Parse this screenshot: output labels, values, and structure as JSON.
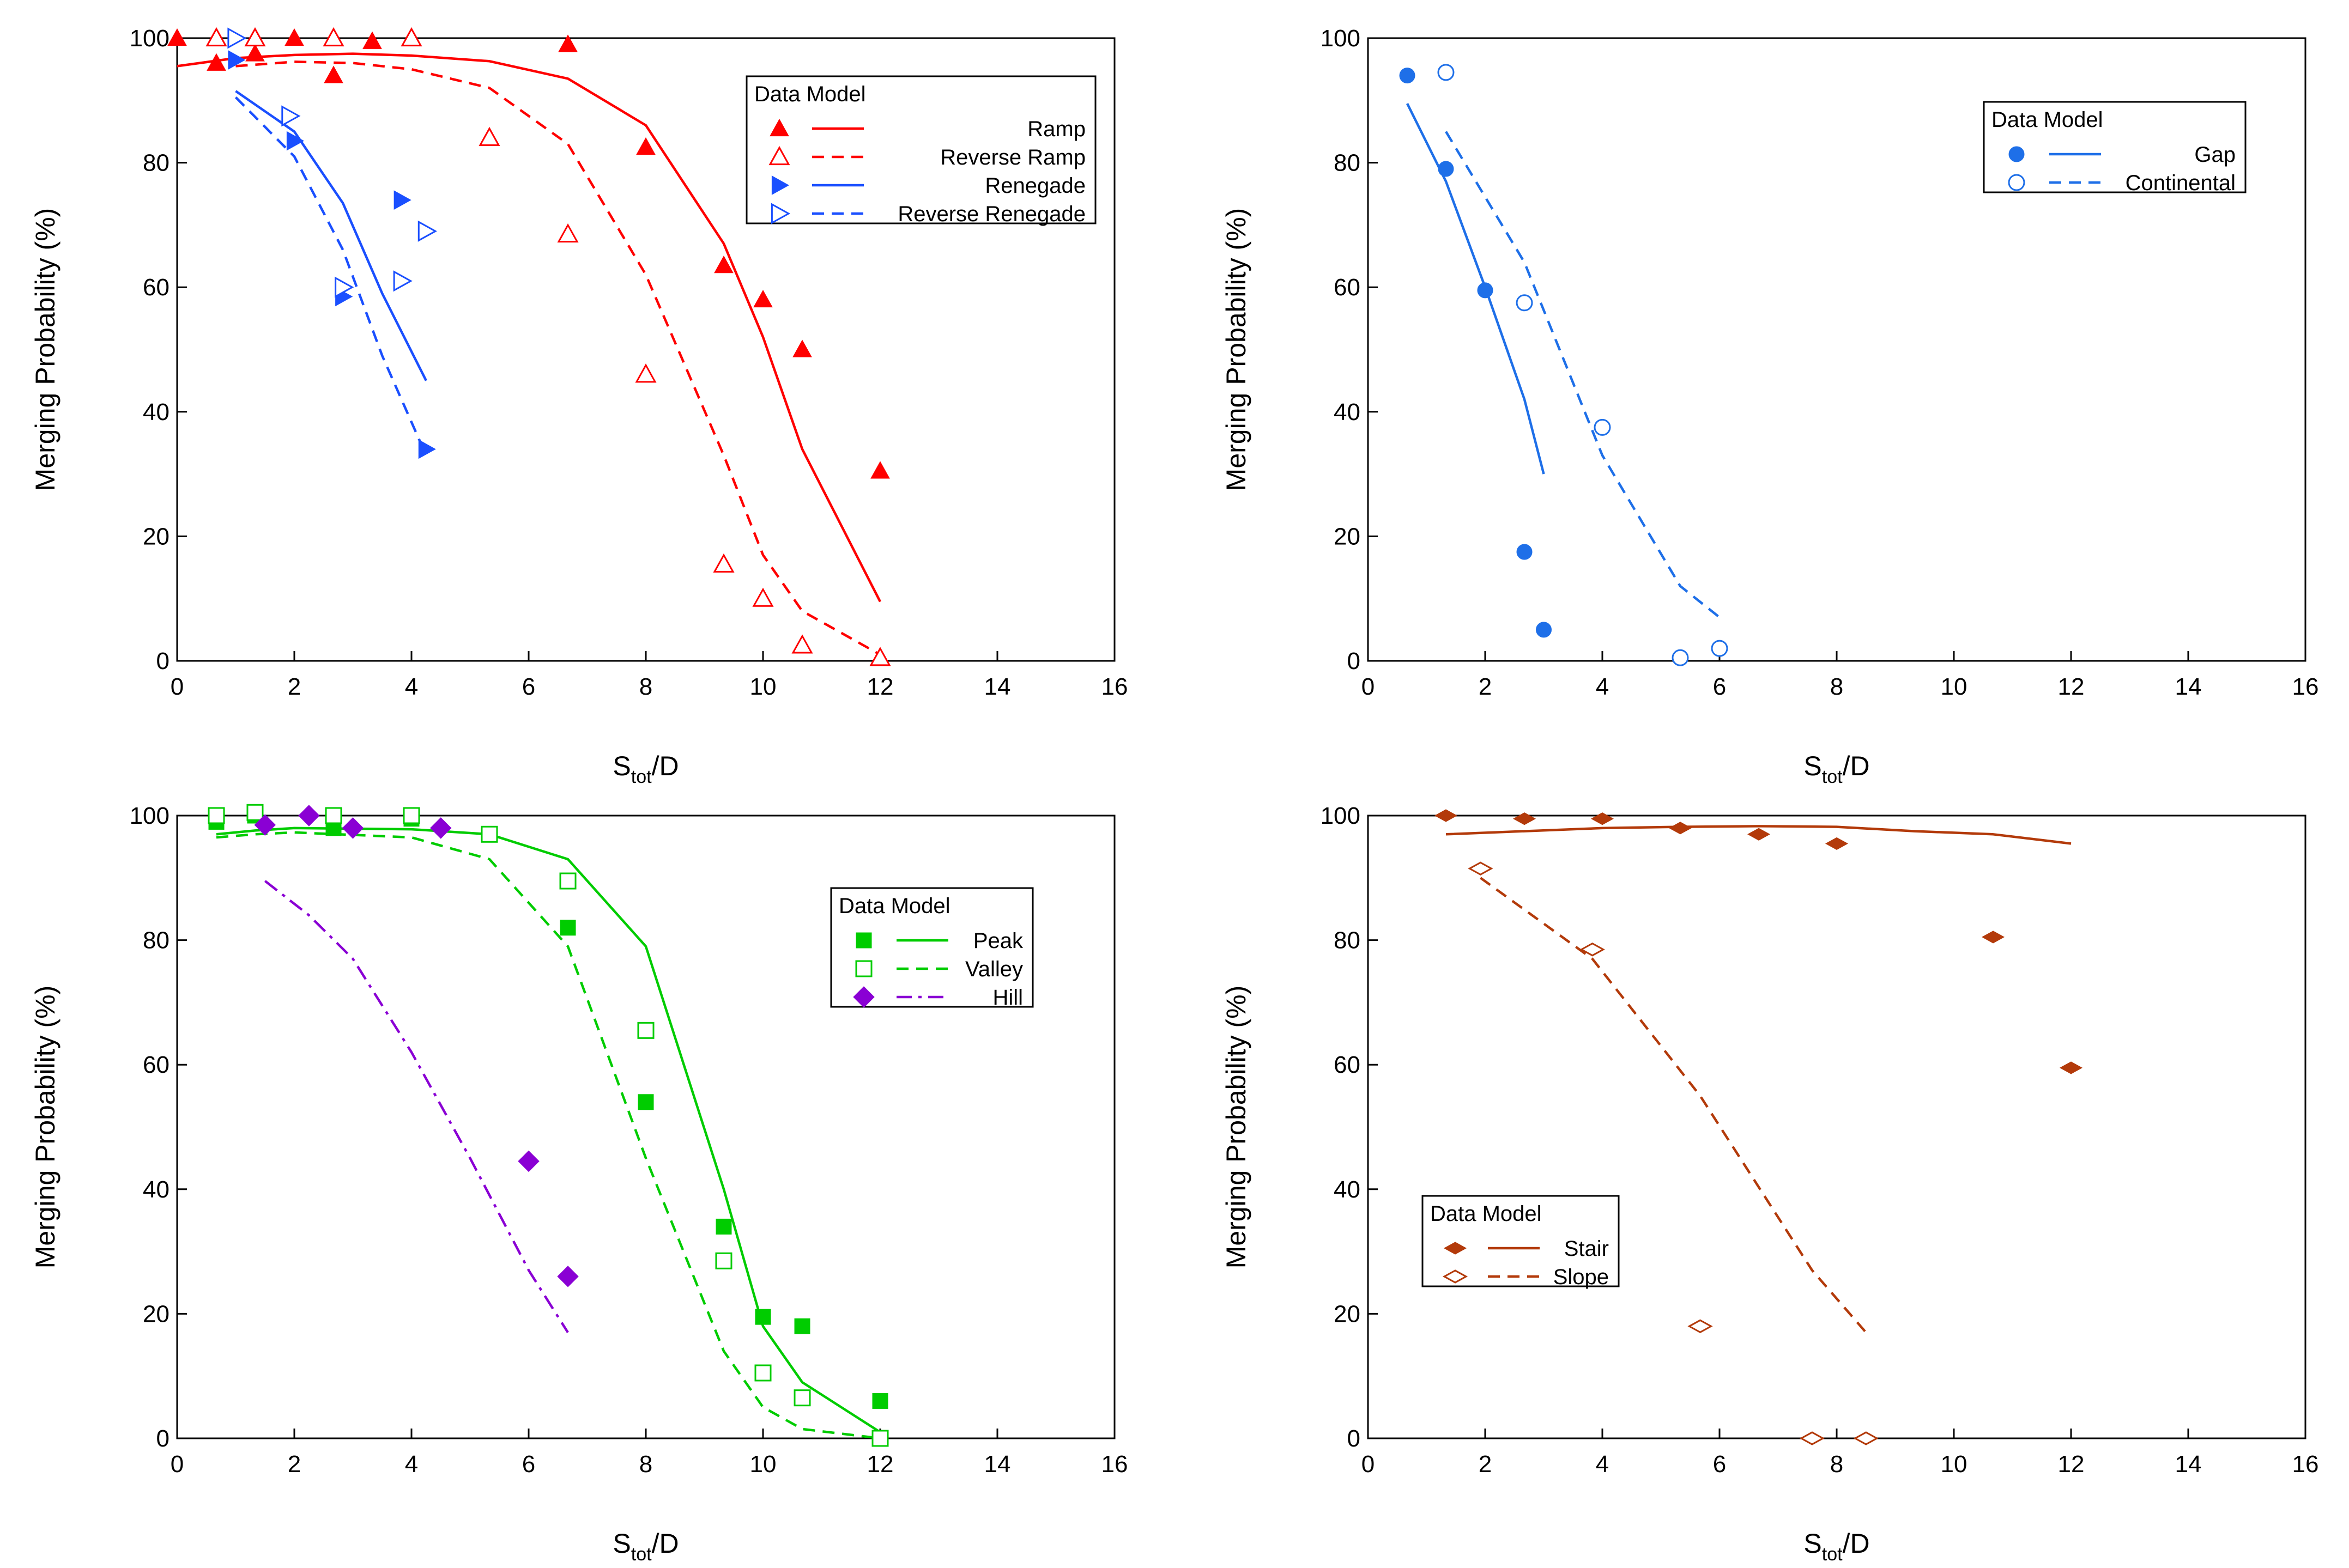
{
  "chart_data": [
    {
      "type": "scatter",
      "panel": "top-left",
      "xlabel_main": "S",
      "xlabel_sub": "tot",
      "xlabel_tail": "/D",
      "ylabel": "Merging Probability (%)",
      "xlim": [
        0,
        16
      ],
      "ylim": [
        0,
        100
      ],
      "xticks": [
        "0",
        "2",
        "4",
        "6",
        "8",
        "10",
        "12",
        "14",
        "16"
      ],
      "yticks": [
        "0",
        "20",
        "40",
        "60",
        "80",
        "100"
      ],
      "legend_title": "Data Model",
      "legend_position": "top-right",
      "series": [
        {
          "name": "Ramp",
          "color": "#ff0000",
          "marker": "triangle-up",
          "filled": true,
          "dash": "solid",
          "points": [
            [
              0,
              100
            ],
            [
              0.67,
              96
            ],
            [
              1.33,
              97.5
            ],
            [
              2,
              100
            ],
            [
              2.67,
              94
            ],
            [
              3.33,
              99.5
            ],
            [
              4,
              100
            ],
            [
              6.67,
              99
            ],
            [
              8,
              82.5
            ],
            [
              9.33,
              63.5
            ],
            [
              10,
              58
            ],
            [
              10.67,
              50
            ],
            [
              12,
              30.5
            ]
          ],
          "line": [
            [
              0,
              95.5
            ],
            [
              1,
              96.8
            ],
            [
              2,
              97.3
            ],
            [
              3,
              97.5
            ],
            [
              4,
              97.2
            ],
            [
              5.33,
              96.3
            ],
            [
              6.67,
              93.5
            ],
            [
              8,
              86
            ],
            [
              9.33,
              67
            ],
            [
              10,
              52
            ],
            [
              10.67,
              34
            ],
            [
              12,
              9.5
            ]
          ]
        },
        {
          "name": "Reverse Ramp",
          "color": "#ff0000",
          "marker": "triangle-up",
          "filled": false,
          "dash": "dashed",
          "points": [
            [
              0.67,
              100
            ],
            [
              1.33,
              100
            ],
            [
              2.67,
              100
            ],
            [
              4,
              100
            ],
            [
              5.33,
              84
            ],
            [
              6.67,
              68.5
            ],
            [
              8,
              46
            ],
            [
              9.33,
              15.5
            ],
            [
              10,
              10
            ],
            [
              10.67,
              2.5
            ],
            [
              12,
              0.5
            ]
          ],
          "line": [
            [
              1,
              95.5
            ],
            [
              2,
              96.2
            ],
            [
              3,
              96
            ],
            [
              4,
              95
            ],
            [
              5.33,
              92
            ],
            [
              6.67,
              83
            ],
            [
              8,
              62
            ],
            [
              9.33,
              33
            ],
            [
              10,
              17
            ],
            [
              10.67,
              8
            ],
            [
              12,
              1
            ]
          ]
        },
        {
          "name": "Renegade",
          "color": "#1a4fff",
          "marker": "triangle-right",
          "filled": true,
          "dash": "solid",
          "points": [
            [
              1,
              96.5
            ],
            [
              2,
              83.5
            ],
            [
              2.83,
              58.5
            ],
            [
              3.83,
              74
            ],
            [
              4.25,
              34
            ]
          ],
          "line": [
            [
              1,
              91.5
            ],
            [
              2,
              85
            ],
            [
              2.83,
              73.5
            ],
            [
              3.5,
              59
            ],
            [
              4.25,
              45
            ]
          ]
        },
        {
          "name": "Reverse Renegade",
          "color": "#1a4fff",
          "marker": "triangle-right",
          "filled": false,
          "dash": "dashed",
          "points": [
            [
              1,
              100
            ],
            [
              1.92,
              87.5
            ],
            [
              2.83,
              60
            ],
            [
              3.83,
              61
            ],
            [
              4.25,
              69
            ]
          ],
          "line": [
            [
              1,
              90.5
            ],
            [
              2,
              81
            ],
            [
              2.83,
              66
            ],
            [
              3.5,
              49
            ],
            [
              4.25,
              33
            ]
          ]
        }
      ]
    },
    {
      "type": "scatter",
      "panel": "top-right",
      "xlabel_main": "S",
      "xlabel_sub": "tot",
      "xlabel_tail": "/D",
      "ylabel": "Merging Probability (%)",
      "xlim": [
        0,
        16
      ],
      "ylim": [
        0,
        100
      ],
      "xticks": [
        "0",
        "2",
        "4",
        "6",
        "8",
        "10",
        "12",
        "14",
        "16"
      ],
      "yticks": [
        "0",
        "20",
        "40",
        "60",
        "80",
        "100"
      ],
      "legend_title": "Data Model",
      "legend_position": "top-right",
      "series": [
        {
          "name": "Gap",
          "color": "#1e6fe8",
          "marker": "circle",
          "filled": true,
          "dash": "solid",
          "points": [
            [
              0.67,
              94
            ],
            [
              1.33,
              79
            ],
            [
              2,
              59.5
            ],
            [
              2.67,
              17.5
            ],
            [
              3,
              5
            ]
          ],
          "line": [
            [
              0.67,
              89.5
            ],
            [
              1.33,
              77
            ],
            [
              2,
              60
            ],
            [
              2.67,
              42
            ],
            [
              3,
              30
            ]
          ]
        },
        {
          "name": "Continental",
          "color": "#1e6fe8",
          "marker": "circle",
          "filled": false,
          "dash": "dashed",
          "points": [
            [
              1.33,
              94.5
            ],
            [
              2.67,
              57.5
            ],
            [
              4,
              37.5
            ],
            [
              5.33,
              0.5
            ],
            [
              6,
              2
            ]
          ],
          "line": [
            [
              1.33,
              85
            ],
            [
              2.67,
              64
            ],
            [
              4,
              33
            ],
            [
              5.33,
              12
            ],
            [
              6,
              7
            ]
          ]
        }
      ]
    },
    {
      "type": "scatter",
      "panel": "bottom-left",
      "xlabel_main": "S",
      "xlabel_sub": "tot",
      "xlabel_tail": "/D",
      "ylabel": "Merging Probability (%)",
      "xlim": [
        0,
        16
      ],
      "ylim": [
        0,
        100
      ],
      "xticks": [
        "0",
        "2",
        "4",
        "6",
        "8",
        "10",
        "12",
        "14",
        "16"
      ],
      "yticks": [
        "0",
        "20",
        "40",
        "60",
        "80",
        "100"
      ],
      "legend_title": "Data Model",
      "legend_position": "top-right",
      "series": [
        {
          "name": "Peak",
          "color": "#00cc00",
          "marker": "square",
          "filled": true,
          "dash": "solid",
          "points": [
            [
              0.67,
              99
            ],
            [
              1.33,
              100
            ],
            [
              2.67,
              98
            ],
            [
              4,
              99.5
            ],
            [
              6.67,
              82
            ],
            [
              8,
              54
            ],
            [
              9.33,
              34
            ],
            [
              10,
              19.5
            ],
            [
              10.67,
              18
            ],
            [
              12,
              6
            ]
          ],
          "line": [
            [
              0.67,
              97
            ],
            [
              1.33,
              97.6
            ],
            [
              2,
              98
            ],
            [
              4,
              97.8
            ],
            [
              5.33,
              97
            ],
            [
              6.67,
              93
            ],
            [
              8,
              79
            ],
            [
              9.33,
              40
            ],
            [
              10,
              18
            ],
            [
              10.67,
              9
            ],
            [
              12,
              1
            ]
          ]
        },
        {
          "name": "Valley",
          "color": "#00cc00",
          "marker": "square",
          "filled": false,
          "dash": "dashed",
          "points": [
            [
              0.67,
              100
            ],
            [
              1.33,
              100.5
            ],
            [
              2.67,
              100
            ],
            [
              4,
              100
            ],
            [
              5.33,
              97
            ],
            [
              6.67,
              89.5
            ],
            [
              8,
              65.5
            ],
            [
              9.33,
              28.5
            ],
            [
              10,
              10.5
            ],
            [
              10.67,
              6.5
            ],
            [
              12,
              0
            ]
          ],
          "line": [
            [
              0.67,
              96.5
            ],
            [
              1.33,
              97
            ],
            [
              2,
              97.3
            ],
            [
              4,
              96.5
            ],
            [
              5.33,
              93
            ],
            [
              6.67,
              79
            ],
            [
              8,
              45
            ],
            [
              9.33,
              14
            ],
            [
              10,
              5
            ],
            [
              10.67,
              1.5
            ],
            [
              12,
              0
            ]
          ]
        },
        {
          "name": "Hill",
          "color": "#8a00d4",
          "marker": "diamond",
          "filled": true,
          "dash": "dashdot",
          "points": [
            [
              1.5,
              98.5
            ],
            [
              2.25,
              100
            ],
            [
              3,
              98
            ],
            [
              4.5,
              98
            ],
            [
              6,
              44.5
            ],
            [
              6.67,
              26
            ]
          ],
          "line": [
            [
              1.5,
              89.5
            ],
            [
              2.25,
              84
            ],
            [
              3,
              77
            ],
            [
              4,
              62
            ],
            [
              5,
              45
            ],
            [
              6,
              27
            ],
            [
              6.67,
              17
            ]
          ]
        }
      ]
    },
    {
      "type": "scatter",
      "panel": "bottom-right",
      "xlabel_main": "S",
      "xlabel_sub": "tot",
      "xlabel_tail": "/D",
      "ylabel": "Merging Probability (%)",
      "xlim": [
        0,
        16
      ],
      "ylim": [
        0,
        100
      ],
      "xticks": [
        "0",
        "2",
        "4",
        "6",
        "8",
        "10",
        "12",
        "14",
        "16"
      ],
      "yticks": [
        "0",
        "20",
        "40",
        "60",
        "80",
        "100"
      ],
      "legend_title": "Data Model",
      "legend_position": "bottom-left",
      "series": [
        {
          "name": "Stair",
          "color": "#b33a0a",
          "marker": "diamond-wide",
          "filled": true,
          "dash": "solid",
          "points": [
            [
              1.33,
              100
            ],
            [
              2.67,
              99.5
            ],
            [
              4,
              99.5
            ],
            [
              5.33,
              98
            ],
            [
              6.67,
              97
            ],
            [
              8,
              95.5
            ],
            [
              10.67,
              80.5
            ],
            [
              12,
              59.5
            ]
          ],
          "line": [
            [
              1.33,
              97
            ],
            [
              2.67,
              97.5
            ],
            [
              4,
              98
            ],
            [
              5.33,
              98.2
            ],
            [
              6.67,
              98.3
            ],
            [
              8,
              98.2
            ],
            [
              9.33,
              97.5
            ],
            [
              10.67,
              97
            ],
            [
              12,
              95.5
            ]
          ]
        },
        {
          "name": "Slope",
          "color": "#b33a0a",
          "marker": "diamond-wide",
          "filled": false,
          "dash": "dashed",
          "points": [
            [
              1.92,
              91.5
            ],
            [
              3.83,
              78.5
            ],
            [
              5.67,
              18
            ],
            [
              7.58,
              0
            ],
            [
              8.5,
              0
            ]
          ],
          "line": [
            [
              1.92,
              90
            ],
            [
              3.83,
              77
            ],
            [
              5.67,
              55
            ],
            [
              7.58,
              27
            ],
            [
              8.5,
              17
            ]
          ]
        }
      ]
    }
  ]
}
